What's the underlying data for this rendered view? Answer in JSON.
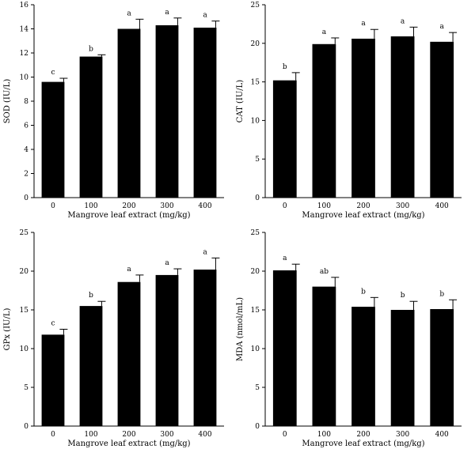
{
  "chart_data": [
    {
      "type": "bar",
      "categories": [
        "0",
        "100",
        "200",
        "300",
        "400"
      ],
      "values": [
        9.6,
        11.7,
        14.0,
        14.3,
        14.1
      ],
      "errors": [
        0.3,
        0.15,
        0.8,
        0.6,
        0.55
      ],
      "significance": [
        "c",
        "b",
        "a",
        "a",
        "a"
      ],
      "xlabel": "Mangrove leaf extract (mg/kg)",
      "ylabel": "SOD (IU/L)",
      "ylim": [
        0,
        16
      ],
      "yticks": [
        0,
        2,
        4,
        6,
        8,
        10,
        12,
        14,
        16
      ]
    },
    {
      "type": "bar",
      "categories": [
        "0",
        "100",
        "200",
        "300",
        "400"
      ],
      "values": [
        15.2,
        19.9,
        20.6,
        20.9,
        20.2
      ],
      "errors": [
        1.0,
        0.8,
        1.2,
        1.2,
        1.2
      ],
      "significance": [
        "b",
        "a",
        "a",
        "a",
        "a"
      ],
      "xlabel": "Mangrove leaf extract (mg/kg)",
      "ylabel": "CAT (IU/L)",
      "ylim": [
        0,
        25
      ],
      "yticks": [
        0,
        5,
        10,
        15,
        20,
        25
      ]
    },
    {
      "type": "bar",
      "categories": [
        "0",
        "100",
        "200",
        "300",
        "400"
      ],
      "values": [
        11.8,
        15.5,
        18.6,
        19.5,
        20.2
      ],
      "errors": [
        0.7,
        0.6,
        0.9,
        0.8,
        1.5
      ],
      "significance": [
        "c",
        "b",
        "a",
        "a",
        "a"
      ],
      "xlabel": "Mangrove leaf extract (mg/kg)",
      "ylabel": "GPx (IU/L)",
      "ylim": [
        0,
        25
      ],
      "yticks": [
        0,
        5,
        10,
        15,
        20,
        25
      ]
    },
    {
      "type": "bar",
      "categories": [
        "0",
        "100",
        "200",
        "300",
        "400"
      ],
      "values": [
        20.1,
        18.0,
        15.4,
        15.0,
        15.1
      ],
      "errors": [
        0.8,
        1.2,
        1.2,
        1.1,
        1.2
      ],
      "significance": [
        "a",
        "ab",
        "b",
        "b",
        "b"
      ],
      "xlabel": "Mangrove leaf extract (mg/kg)",
      "ylabel": "MDA (nmol/mL)",
      "ylim": [
        0,
        25
      ],
      "yticks": [
        0,
        5,
        10,
        15,
        20,
        25
      ]
    }
  ]
}
